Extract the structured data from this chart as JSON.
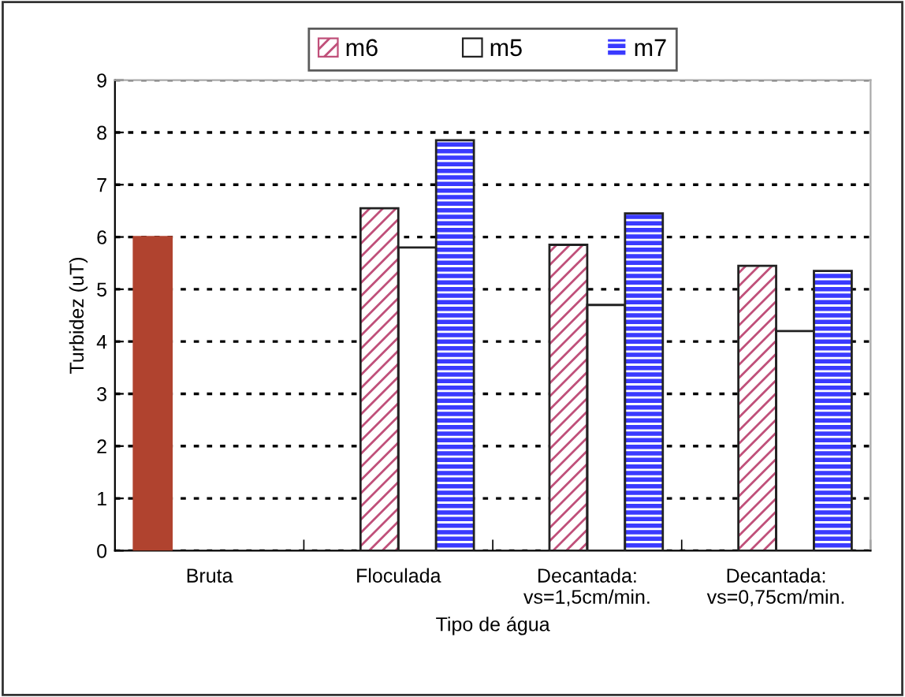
{
  "chart_data": {
    "type": "bar",
    "xlabel": "Tipo de água",
    "ylabel": "Turbidez (uT)",
    "categories": [
      "Bruta",
      "Floculada",
      "Decantada:\nvs=1,5cm/min.",
      "Decantada:\nvs=0,75cm/min."
    ],
    "series": [
      {
        "color": "#b0432f",
        "values": [
          6.0,
          null,
          null,
          null
        ]
      },
      {
        "name": "m6",
        "color": "#c0507a",
        "values": [
          null,
          6.55,
          5.85,
          5.45
        ]
      },
      {
        "name": "m5",
        "color": "#ffffff",
        "values": [
          null,
          5.8,
          4.7,
          4.2
        ]
      },
      {
        "name": "m7",
        "color": "#3a3aff",
        "values": [
          null,
          7.85,
          6.45,
          5.35
        ]
      }
    ],
    "ylim": [
      0,
      9
    ],
    "yticks": [
      0,
      1,
      2,
      3,
      4,
      5,
      6,
      7,
      8,
      9
    ],
    "grid": "y",
    "legend": "top"
  }
}
